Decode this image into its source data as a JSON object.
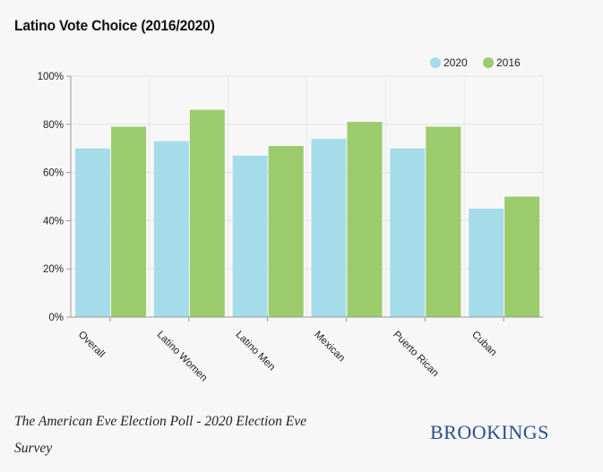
{
  "title": "Latino Vote Choice (2016/2020)",
  "source": "The American Eve Election Poll - 2020 Election Eve Survey",
  "brand": "BROOKINGS",
  "chart_data": {
    "type": "bar",
    "title": "Latino Vote Choice (2016/2020)",
    "categories": [
      "Overall",
      "Latino Women",
      "Latino Men",
      "Mexican",
      "Puerto Rican",
      "Cuban"
    ],
    "series": [
      {
        "name": "2020",
        "color": "#a5dcea",
        "values": [
          70,
          73,
          67,
          74,
          70,
          45
        ]
      },
      {
        "name": "2016",
        "color": "#9ccb6b",
        "values": [
          79,
          86,
          71,
          81,
          79,
          50
        ]
      }
    ],
    "ylim": [
      0,
      100
    ],
    "yticks": [
      "0%",
      "20%",
      "40%",
      "60%",
      "80%",
      "100%"
    ],
    "legend_position": "top-right",
    "grid": true,
    "xlabel": "",
    "ylabel": ""
  }
}
